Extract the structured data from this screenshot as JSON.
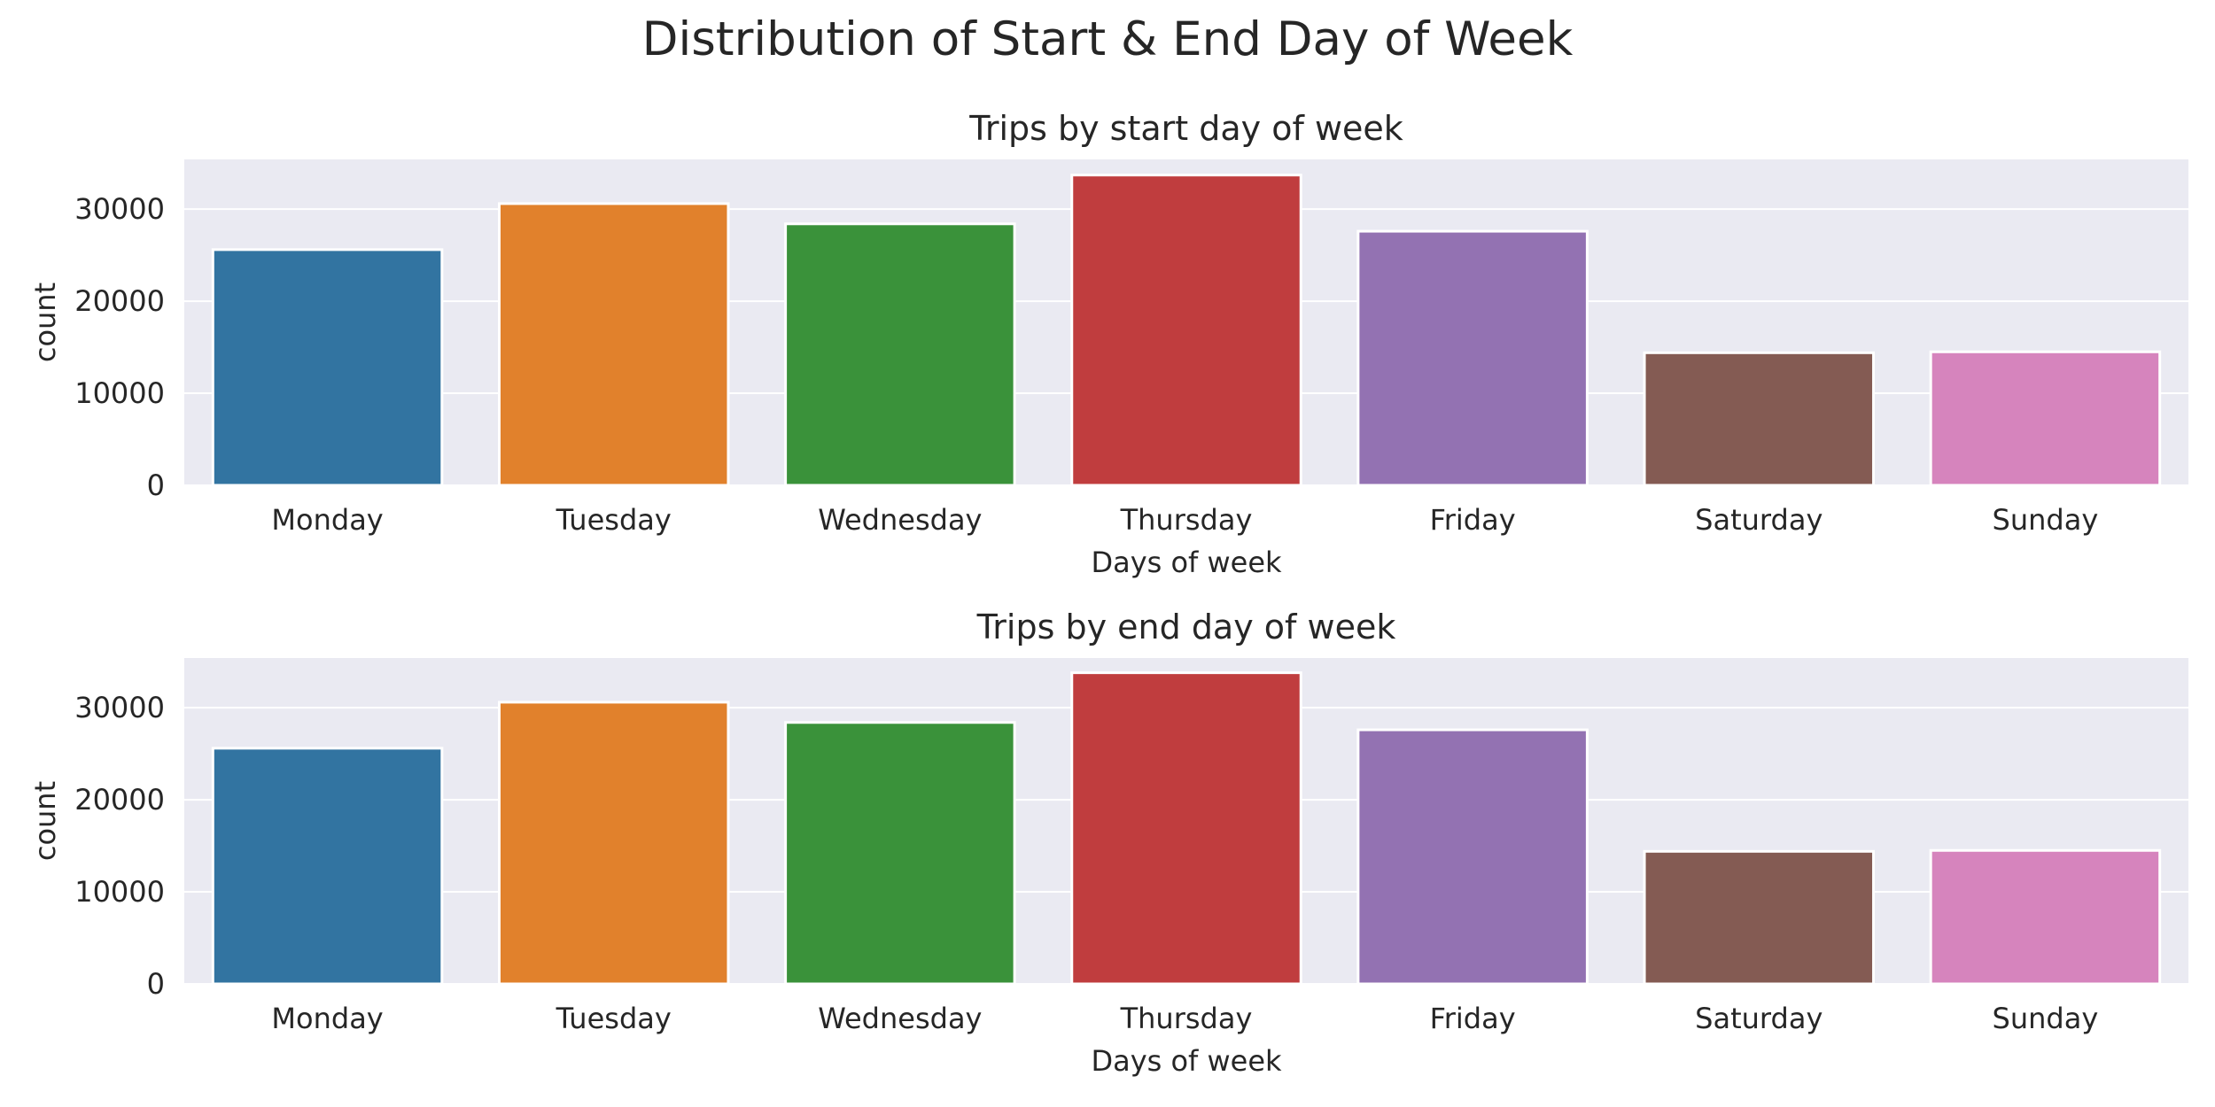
{
  "suptitle": "Distribution of Start & End Day of Week",
  "background_color": "#eaeaf2",
  "grid_color": "#ffffff",
  "bar_colors": [
    "#3274a1",
    "#e1812c",
    "#3a923a",
    "#c03d3e",
    "#9372b2",
    "#845b53",
    "#d684bd"
  ],
  "chart_data": [
    {
      "type": "bar",
      "title": "Trips by start day of week",
      "xlabel": "Days of week",
      "ylabel": "count",
      "categories": [
        "Monday",
        "Tuesday",
        "Wednesday",
        "Thursday",
        "Friday",
        "Saturday",
        "Sunday"
      ],
      "values": [
        25600,
        30600,
        28400,
        33700,
        27600,
        14400,
        14500
      ],
      "ylim": [
        0,
        35400
      ],
      "yticks": [
        0,
        10000,
        20000,
        30000
      ],
      "grid": true
    },
    {
      "type": "bar",
      "title": "Trips by end day of week",
      "xlabel": "Days of week",
      "ylabel": "count",
      "categories": [
        "Monday",
        "Tuesday",
        "Wednesday",
        "Thursday",
        "Friday",
        "Saturday",
        "Sunday"
      ],
      "values": [
        25600,
        30600,
        28400,
        33800,
        27600,
        14400,
        14500
      ],
      "ylim": [
        0,
        35400
      ],
      "yticks": [
        0,
        10000,
        20000,
        30000
      ],
      "grid": true
    }
  ]
}
